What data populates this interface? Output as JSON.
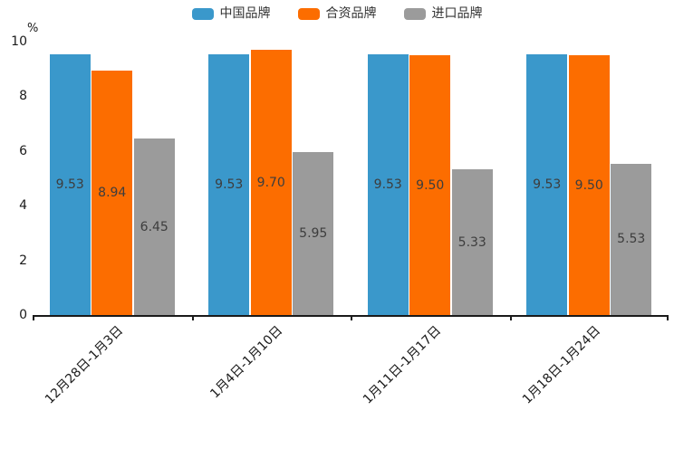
{
  "chart_data": {
    "type": "bar",
    "title": "",
    "ylabel": "%",
    "ylim": [
      0,
      10
    ],
    "yticks": [
      0,
      2,
      4,
      6,
      8,
      10
    ],
    "categories": [
      "12月28日-1月3日",
      "1月4日-1月10日",
      "1月11日-1月17日",
      "1月18日-1月24日"
    ],
    "series": [
      {
        "name": "中国品牌",
        "color": "#3A98CB",
        "values": [
          9.53,
          9.53,
          9.53,
          9.53
        ]
      },
      {
        "name": "合资品牌",
        "color": "#FC6D00",
        "values": [
          8.94,
          9.7,
          9.5,
          9.5
        ]
      },
      {
        "name": "进口品牌",
        "color": "#9B9B9B",
        "values": [
          6.45,
          5.95,
          5.33,
          5.53
        ]
      }
    ],
    "legend_position": "top-center",
    "grid": false,
    "value_labels": "inside-center",
    "value_label_format": "2-decimals",
    "colors": {
      "axis": "#1a1a1a",
      "value_label": "#3d3d3d",
      "legend_text": "#333333",
      "background": "#ffffff"
    }
  }
}
